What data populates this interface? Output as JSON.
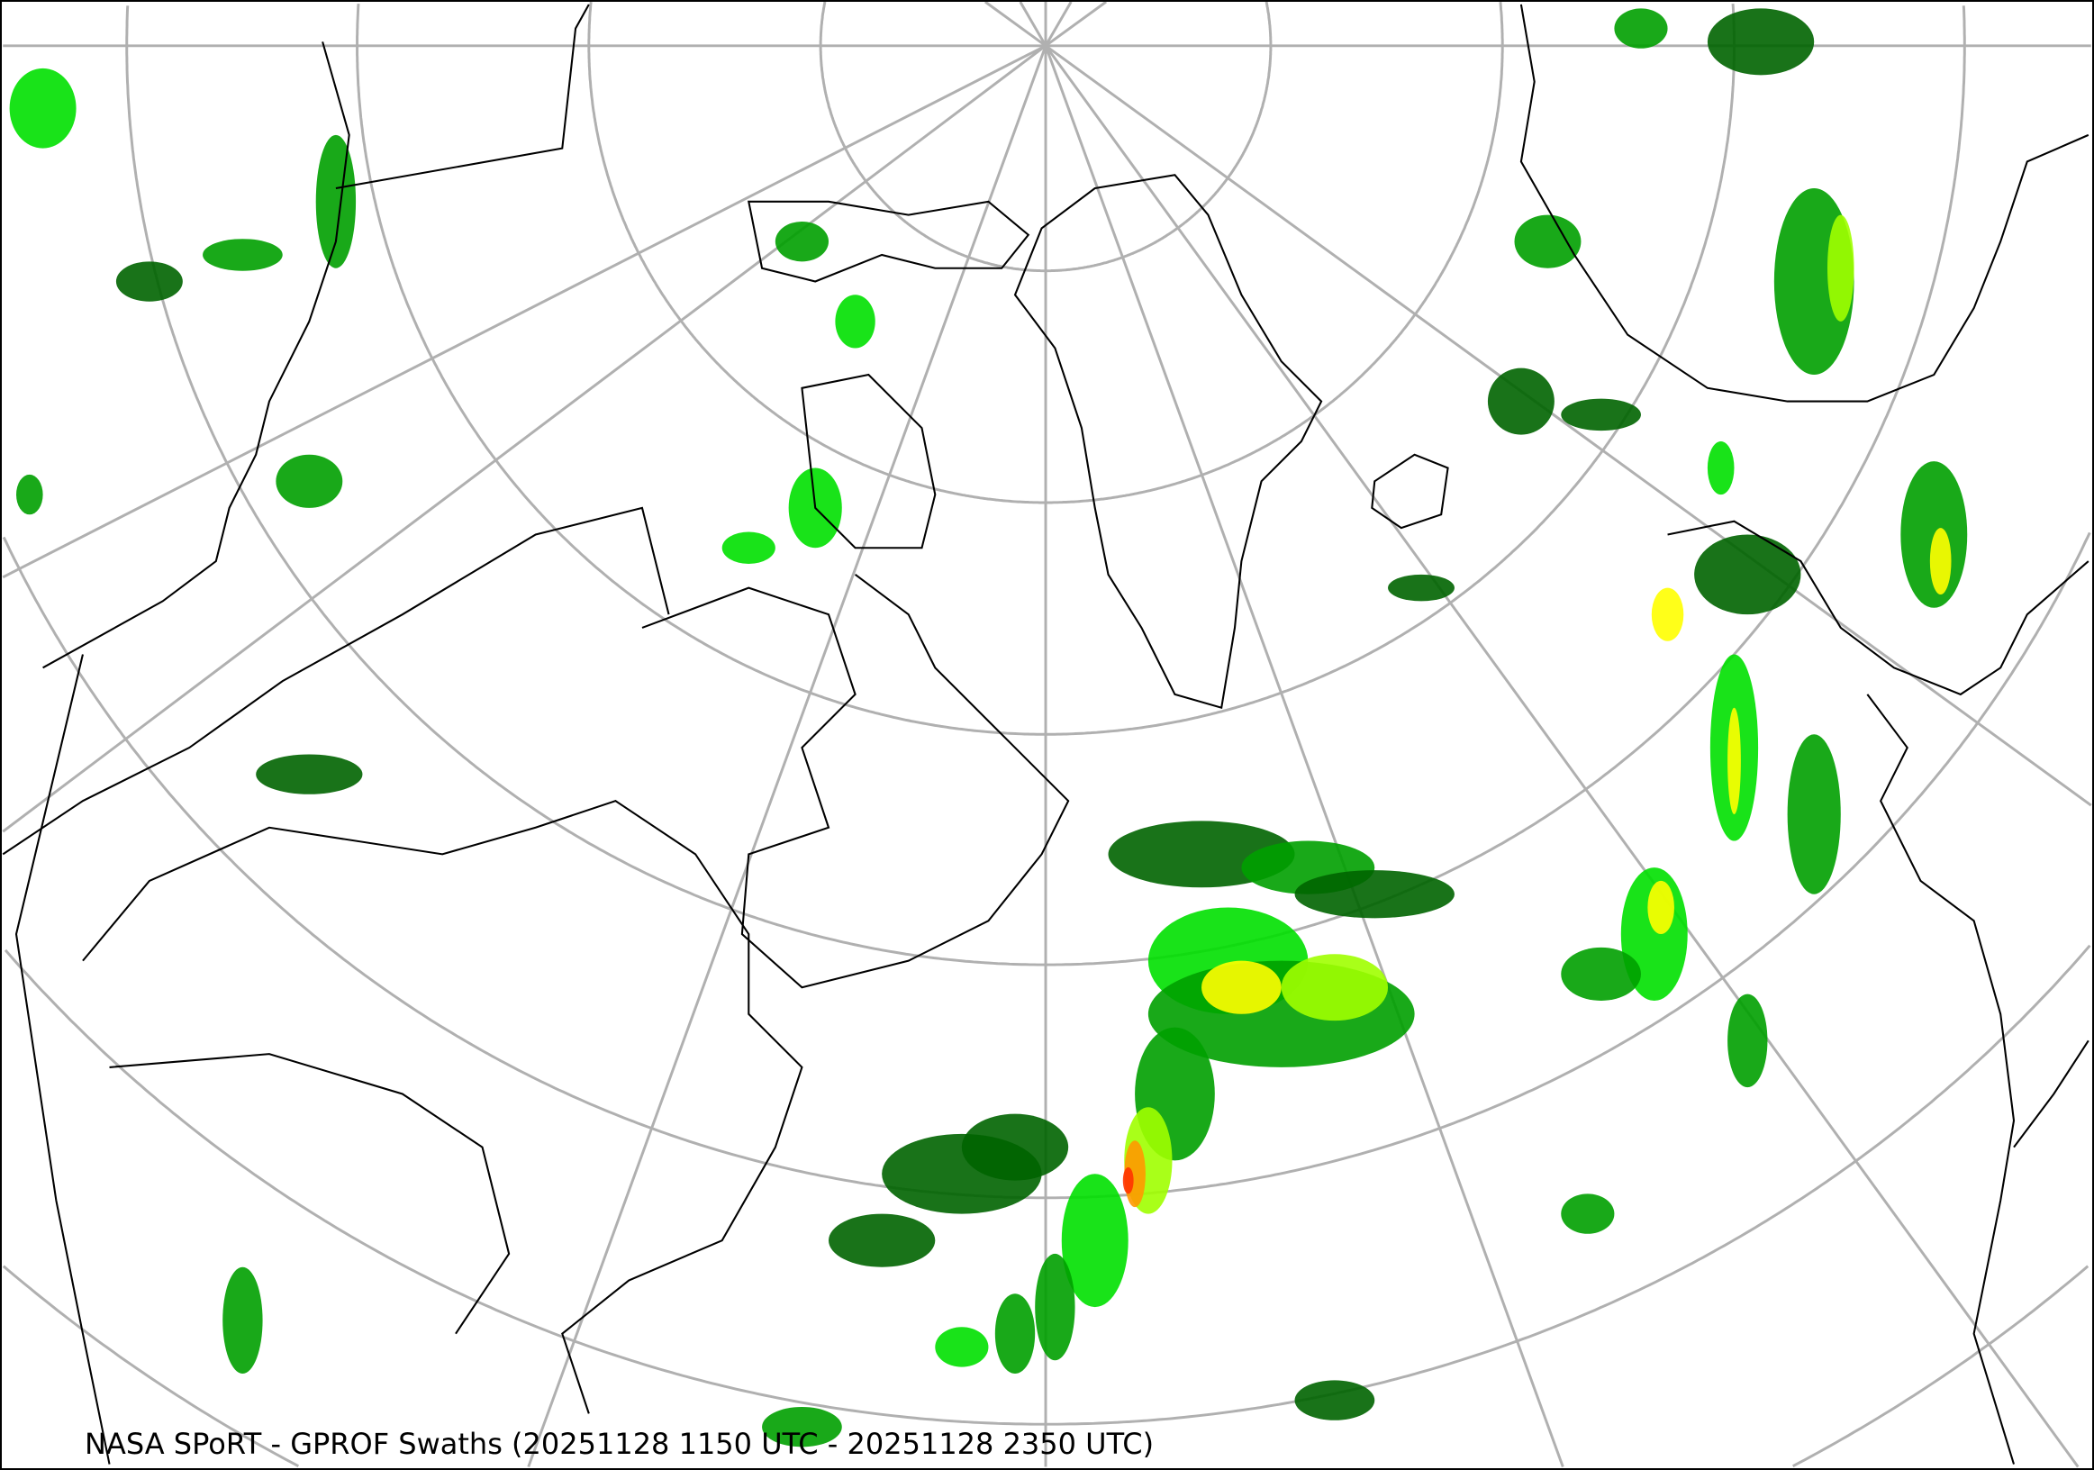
{
  "title": "NASA SPoRT - GPROF Swaths (20251128 1150 UTC - 20251128 2350 UTC)",
  "map": {
    "projection": "north polar stereographic",
    "graticule_color": "#b0b0b0",
    "coastline_color": "#000000",
    "precip_colors": [
      "#006400",
      "#00a000",
      "#00e000",
      "#a0ff00",
      "#ffff00",
      "#ff9900",
      "#ff3300"
    ]
  }
}
